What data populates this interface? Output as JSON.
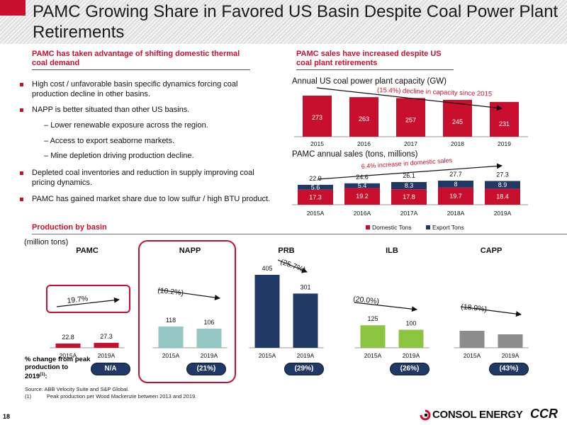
{
  "header": {
    "title": "PAMC Growing Share in Favored US Basin Despite Coal Power Plant Retirements"
  },
  "left": {
    "heading": "PAMC has taken advantage of shifting domestic thermal coal demand",
    "bullets": [
      "High cost / unfavorable basin specific dynamics forcing coal production decline in other basins.",
      "NAPP is better situated than other US basins.",
      "Depleted coal inventories and reduction in supply improving coal pricing dynamics.",
      "PAMC has gained market share due to low sulfur / high BTU product."
    ],
    "subbullets": [
      "Lower renewable exposure across the region.",
      "Access to export seaborne markets.",
      "Mine depletion driving production decline."
    ]
  },
  "right": {
    "heading": "PAMC sales have increased despite US coal plant retirements"
  },
  "production": {
    "heading": "Production by basin",
    "unit": "(million tons)",
    "pct_label": "% change from peak production to 2019",
    "pct_sup": "(1)"
  },
  "footer": {
    "source": "Source: ABB Velocity Suite and S&P Global.",
    "note_num": "(1)",
    "note": "Peak production per Wood Mackenzie between 2013 and 2019.",
    "page": "18",
    "logo": "CONSOL ENERGY",
    "logo2": "CCR"
  },
  "colors": {
    "accent": "#c8102e",
    "navy": "#1f3864",
    "green": "#8cc540",
    "teal": "#94c7c1",
    "gray": "#8c8c8c"
  },
  "chart_data": [
    {
      "type": "bar",
      "title": "Annual US coal power plant capacity (GW)",
      "categories": [
        "2015",
        "2016",
        "2017",
        "2018",
        "2019"
      ],
      "values": [
        273,
        263,
        257,
        245,
        231
      ],
      "annotation": "(15.4%) decline in capacity since 2015",
      "color": "#c8102e"
    },
    {
      "type": "bar",
      "title": "PAMC annual sales (tons, millions)",
      "stacked": true,
      "categories": [
        "2015A",
        "2016A",
        "2017A",
        "2018A",
        "2019A"
      ],
      "series": [
        {
          "name": "Domestic Tons",
          "values": [
            17.3,
            19.2,
            17.8,
            19.7,
            18.4
          ],
          "color": "#c8102e"
        },
        {
          "name": "Export Tons",
          "values": [
            5.6,
            5.4,
            8.3,
            8.0,
            8.9
          ],
          "color": "#1f3864"
        }
      ],
      "totals": [
        22.9,
        24.6,
        26.1,
        27.7,
        27.3
      ],
      "annotation": "6.4% increase in domestic sales",
      "legend": "bottom"
    },
    {
      "type": "bar",
      "basins": [
        {
          "name": "PAMC",
          "categories": [
            "2015A",
            "2019A"
          ],
          "values": [
            22.8,
            27.3
          ],
          "change": "19.7%",
          "pct_change": "N/A",
          "color": "#c8102e"
        },
        {
          "name": "NAPP",
          "categories": [
            "2015A",
            "2019A"
          ],
          "values": [
            118,
            106
          ],
          "change": "(10.2%)",
          "pct_change": "(21%)",
          "color": "#94c7c1"
        },
        {
          "name": "PRB",
          "categories": [
            "2015A",
            "2019A"
          ],
          "values": [
            405,
            301
          ],
          "change": "(25.7%)",
          "pct_change": "(29%)",
          "color": "#1f3864"
        },
        {
          "name": "ILB",
          "categories": [
            "2015A",
            "2019A"
          ],
          "values": [
            125,
            100
          ],
          "change": "(20.0%)",
          "pct_change": "(26%)",
          "color": "#8cc540"
        },
        {
          "name": "CAPP",
          "categories": [
            "2015A",
            "2019A"
          ],
          "values": [
            null,
            null
          ],
          "change": "(18.9%)",
          "pct_change": "(43%)",
          "color": "#8c8c8c"
        }
      ]
    }
  ]
}
